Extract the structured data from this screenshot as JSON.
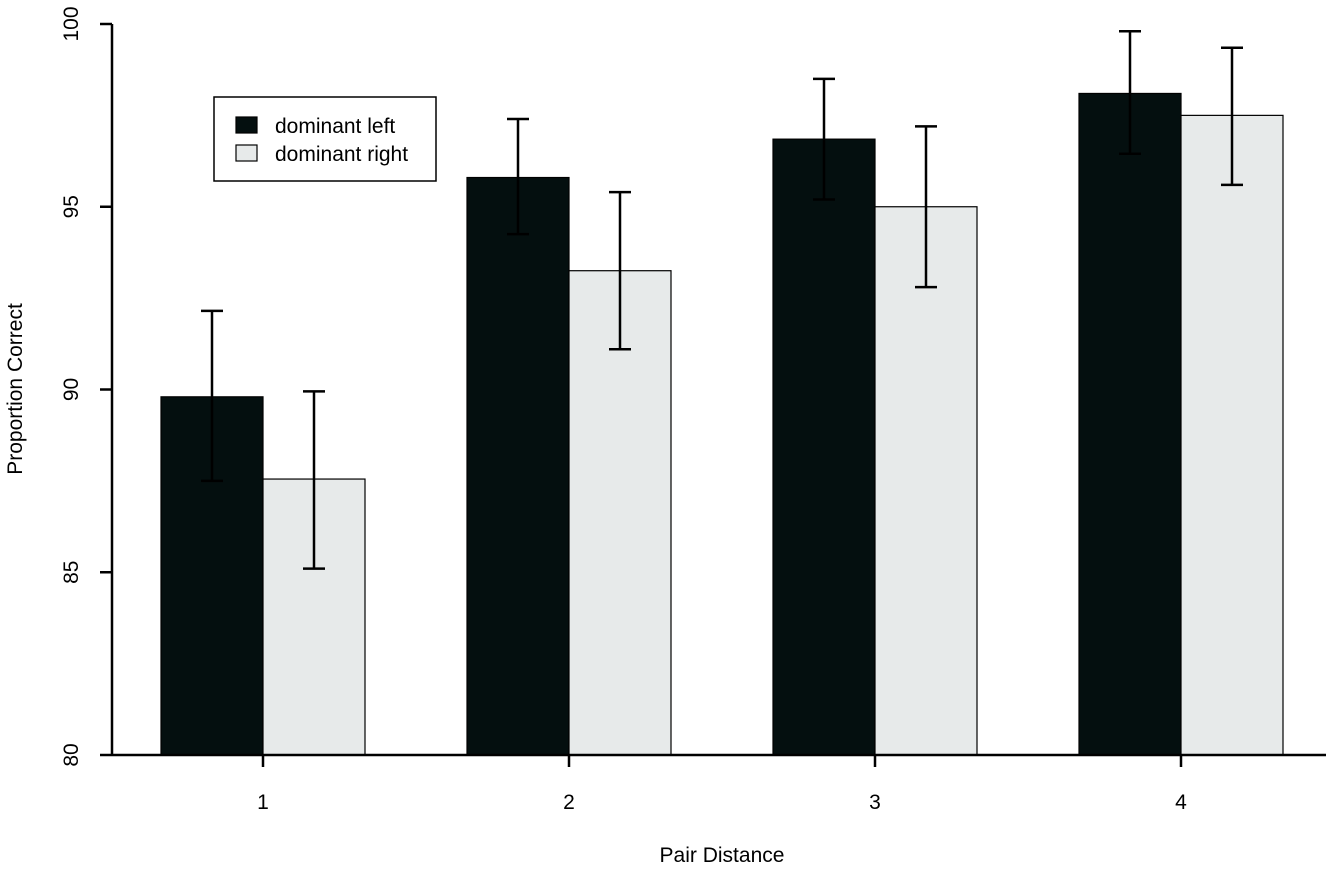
{
  "chart_data": {
    "type": "bar",
    "title": "",
    "xlabel": "Pair Distance",
    "ylabel": "Proportion Correct",
    "ylim": [
      80,
      100
    ],
    "yticks": [
      80,
      85,
      90,
      95,
      100
    ],
    "categories": [
      "1",
      "2",
      "3",
      "4"
    ],
    "series": [
      {
        "name": "dominant left",
        "color": "#040f0f",
        "values": [
          89.8,
          95.8,
          96.85,
          98.1
        ],
        "error_low": [
          87.5,
          94.25,
          95.2,
          96.45
        ],
        "error_high": [
          92.15,
          97.4,
          98.5,
          99.8
        ]
      },
      {
        "name": "dominant right",
        "color": "#e7eaea",
        "values": [
          87.55,
          93.25,
          95.0,
          97.5
        ],
        "error_low": [
          85.1,
          91.1,
          92.8,
          95.6
        ],
        "error_high": [
          89.95,
          95.4,
          97.2,
          99.35
        ]
      }
    ],
    "legend_position": "top-left",
    "grid": false
  }
}
